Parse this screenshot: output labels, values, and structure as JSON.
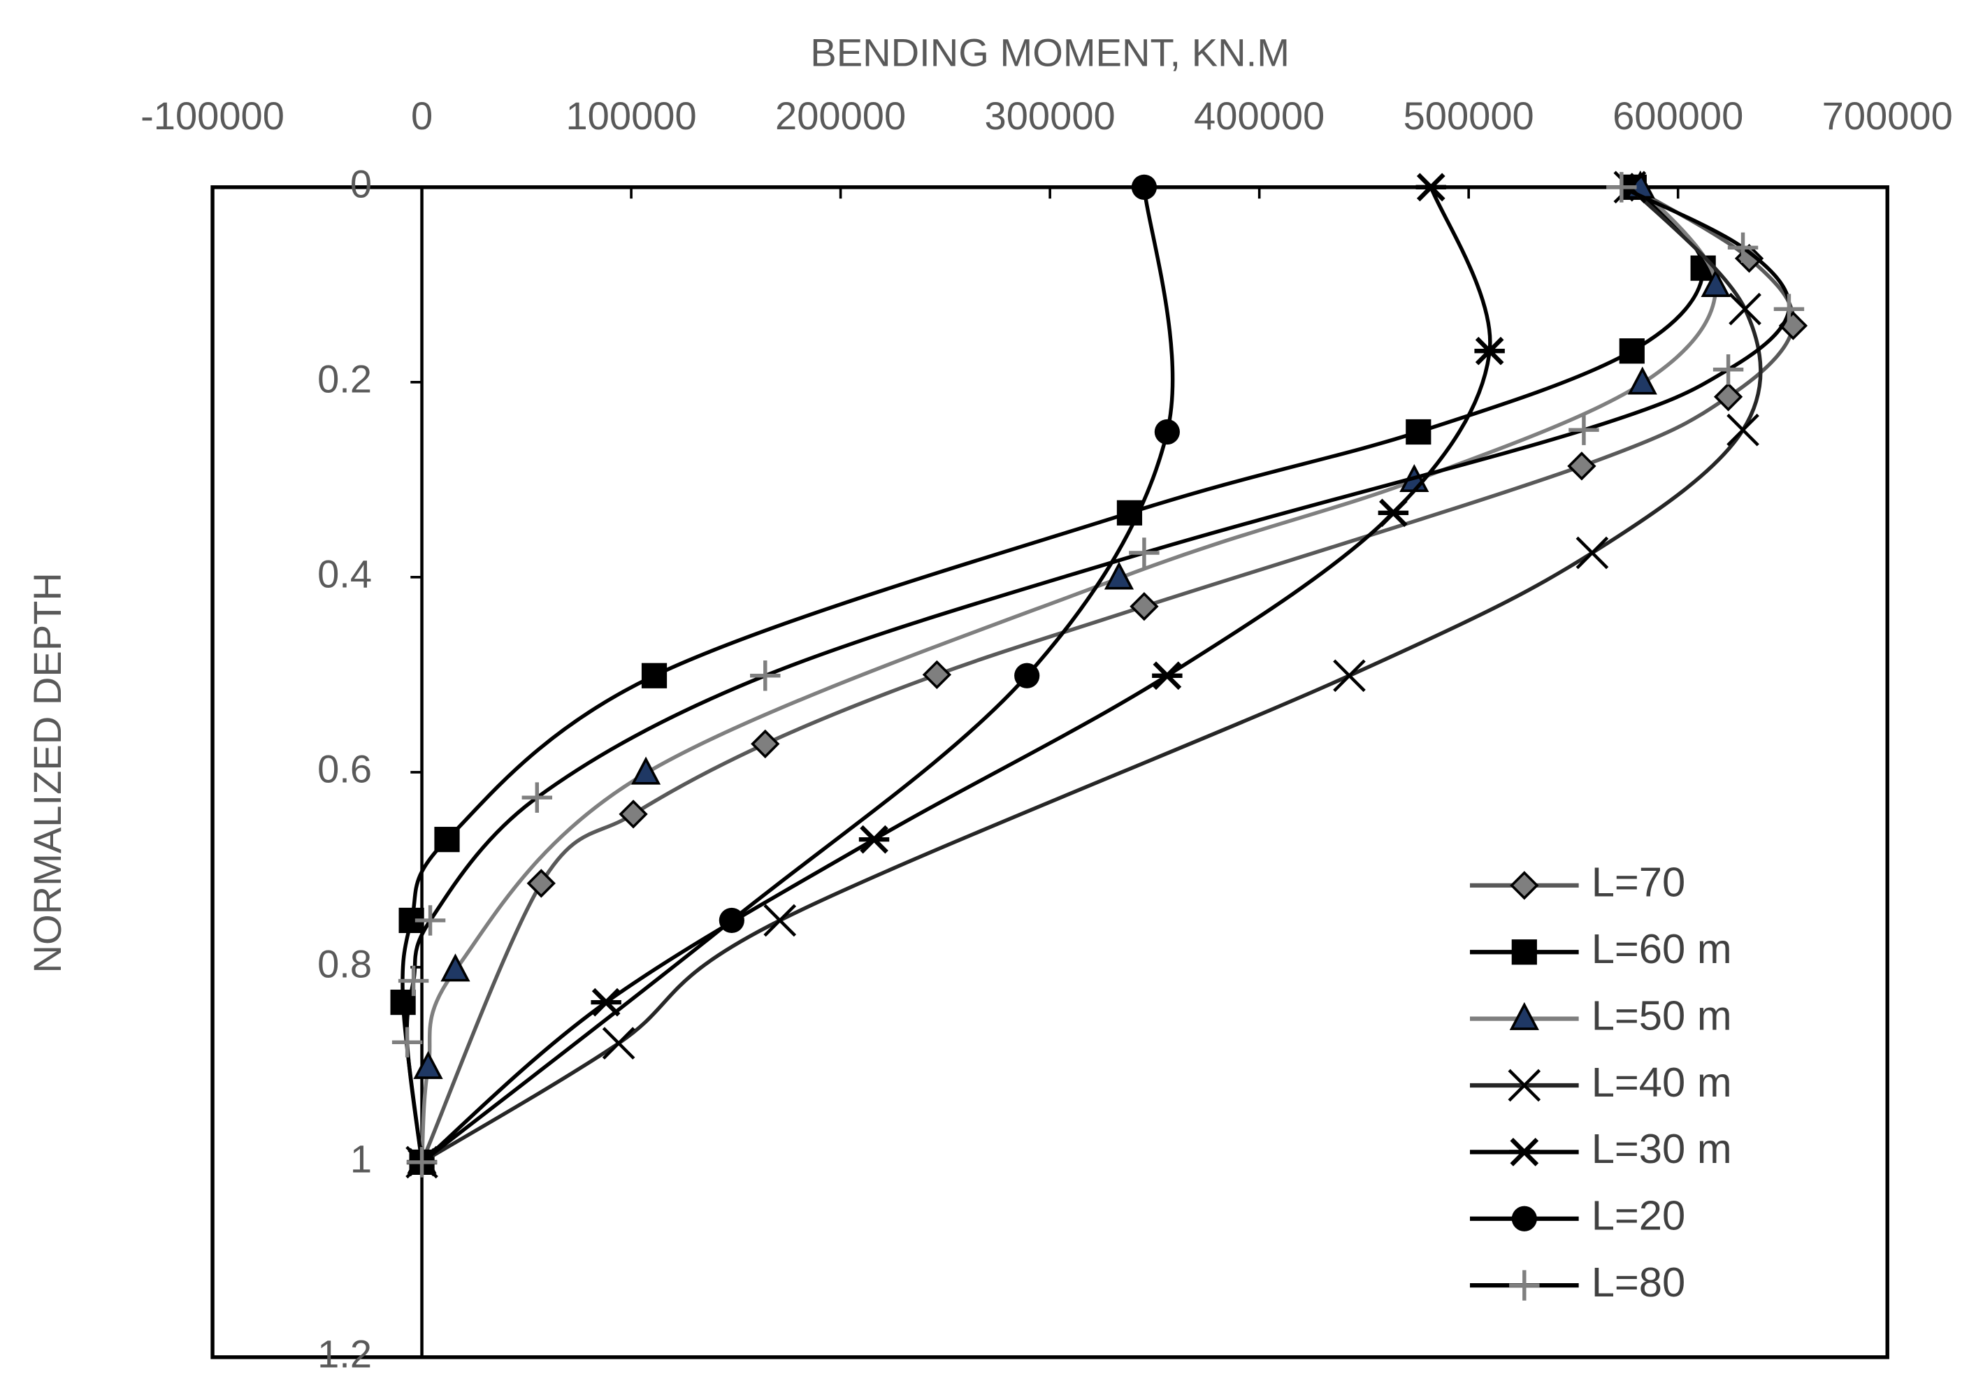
{
  "chart_data": {
    "type": "line",
    "xlabel": "BENDING MOMENT, KN.M",
    "ylabel": "NORMALIZED DEPTH",
    "xlim": [
      -100000,
      700000
    ],
    "xticks": [
      -100000,
      0,
      100000,
      200000,
      300000,
      400000,
      500000,
      600000,
      700000
    ],
    "ylim": [
      0,
      1.2
    ],
    "yticks": [
      0,
      0.2,
      0.4,
      0.6,
      0.8,
      1,
      1.2
    ],
    "y_reversed": true,
    "x_axis_position": "top",
    "legend": "lower right",
    "series": [
      {
        "name": "L=70",
        "color": "#595959",
        "marker": "diamond",
        "marker_color": "#7f7f7f",
        "x": [
          578000,
          634000,
          655000,
          624000,
          554000,
          345000,
          246000,
          164000,
          101000,
          57000,
          0
        ],
        "y": [
          0,
          0.073,
          0.142,
          0.215,
          0.286,
          0.43,
          0.5,
          0.571,
          0.643,
          0.714,
          1
        ]
      },
      {
        "name": "L=60 m",
        "color": "#000000",
        "marker": "square",
        "marker_color": "#000000",
        "x": [
          579000,
          612000,
          578000,
          476000,
          338000,
          111000,
          12000,
          -5000,
          -9000,
          0
        ],
        "y": [
          0,
          0.083,
          0.168,
          0.251,
          0.334,
          0.501,
          0.669,
          0.752,
          0.836,
          1
        ]
      },
      {
        "name": "L=50 m",
        "color": "#7f7f7f",
        "marker": "triangle",
        "marker_color": "#1f3864",
        "x": [
          582000,
          618000,
          583000,
          474000,
          333000,
          107000,
          16000,
          3000,
          0
        ],
        "y": [
          0,
          0.101,
          0.201,
          0.301,
          0.401,
          0.601,
          0.803,
          0.903,
          1
        ]
      },
      {
        "name": "L=40 m",
        "color": "#262626",
        "marker": "x",
        "marker_color": "#000000",
        "x": [
          577000,
          632000,
          631000,
          559000,
          443000,
          171000,
          94000,
          0
        ],
        "y": [
          0,
          0.125,
          0.249,
          0.375,
          0.501,
          0.752,
          0.878,
          1
        ]
      },
      {
        "name": "L=30 m",
        "color": "#000000",
        "marker": "asterisk",
        "marker_color": "#000000",
        "x": [
          482000,
          510000,
          464000,
          356000,
          216000,
          88000,
          0
        ],
        "y": [
          0,
          0.168,
          0.334,
          0.501,
          0.669,
          0.836,
          1
        ]
      },
      {
        "name": "L=20",
        "color": "#000000",
        "marker": "circle",
        "marker_color": "#000000",
        "x": [
          345000,
          356000,
          289000,
          148000,
          0
        ],
        "y": [
          0,
          0.251,
          0.501,
          0.752,
          1
        ]
      },
      {
        "name": "L=80",
        "color": "#000000",
        "marker": "plus",
        "marker_color": "#7f7f7f",
        "x": [
          573000,
          631000,
          653000,
          624000,
          555000,
          345000,
          164000,
          55000,
          4000,
          -4000,
          -7000,
          0
        ],
        "y": [
          0,
          0.062,
          0.125,
          0.187,
          0.249,
          0.375,
          0.501,
          0.626,
          0.752,
          0.814,
          0.877,
          1
        ]
      }
    ]
  }
}
